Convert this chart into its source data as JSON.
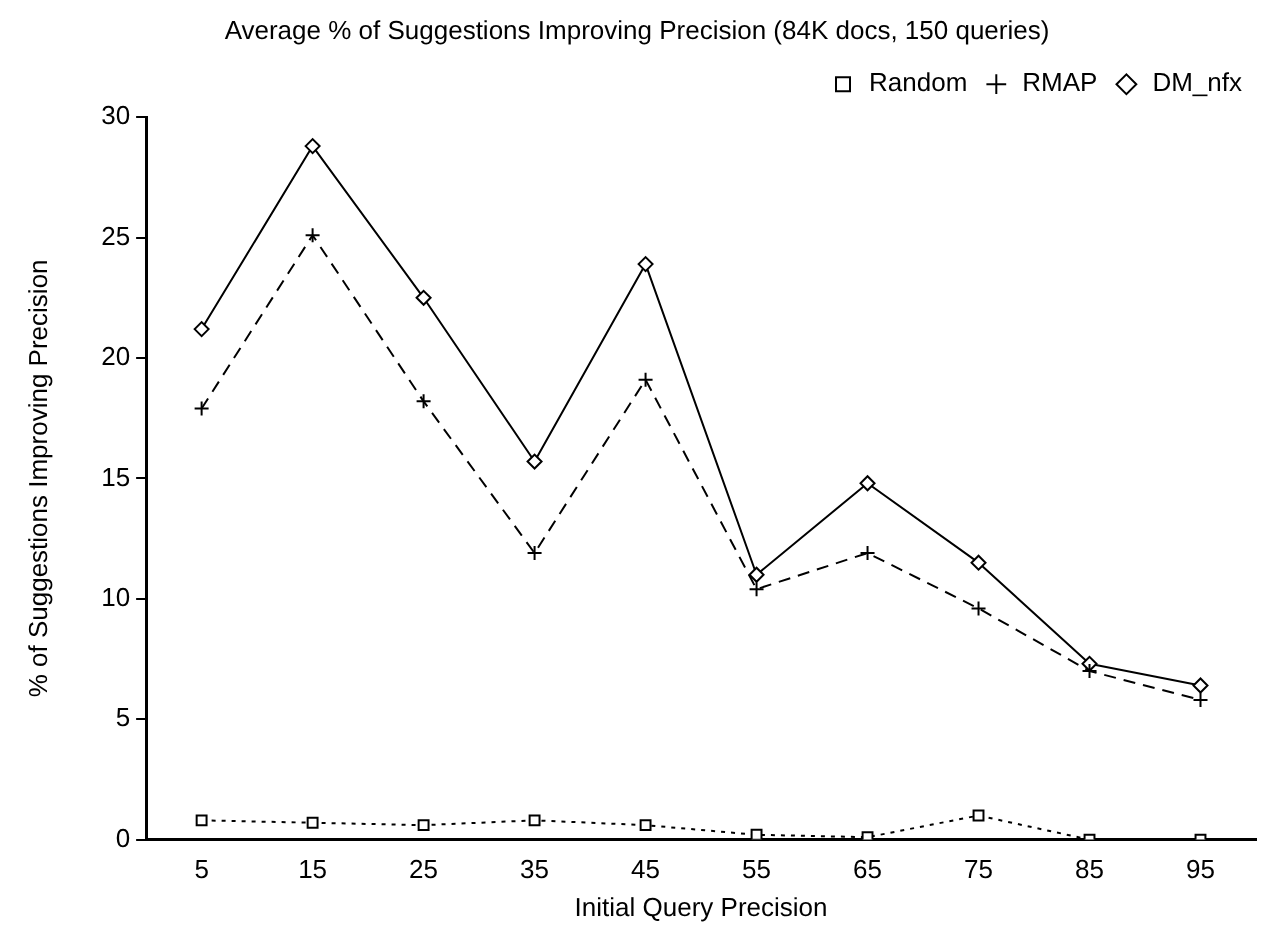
{
  "chart_data": {
    "type": "line",
    "title": "Average % of Suggestions Improving Precision (84K docs, 150 queries)",
    "xlabel": "Initial Query Precision",
    "ylabel": "% of Suggestions Improving Precision",
    "categories": [
      "5",
      "15",
      "25",
      "35",
      "45",
      "55",
      "65",
      "75",
      "85",
      "95"
    ],
    "series": [
      {
        "name": "DM_nfx",
        "color": "#000000",
        "marker": "diamond",
        "line_style": "solid",
        "values": [
          21.2,
          28.8,
          22.5,
          15.7,
          23.9,
          11.0,
          14.8,
          11.5,
          7.3,
          6.4
        ]
      },
      {
        "name": "RMAP",
        "color": "#000000",
        "marker": "cross",
        "line_style": "dashed",
        "values": [
          17.9,
          25.1,
          18.2,
          11.9,
          19.1,
          10.4,
          11.9,
          9.6,
          7.0,
          5.8
        ]
      },
      {
        "name": "Random",
        "color": "#000000",
        "marker": "square",
        "line_style": "dotted",
        "values": [
          0.8,
          0.7,
          0.6,
          0.8,
          0.6,
          0.2,
          0.1,
          1.0,
          0.0,
          0.0
        ]
      }
    ],
    "ylim": [
      0,
      30
    ],
    "yticks": [
      0,
      5,
      10,
      15,
      20,
      25,
      30
    ],
    "grid": false,
    "legend": "top right"
  }
}
